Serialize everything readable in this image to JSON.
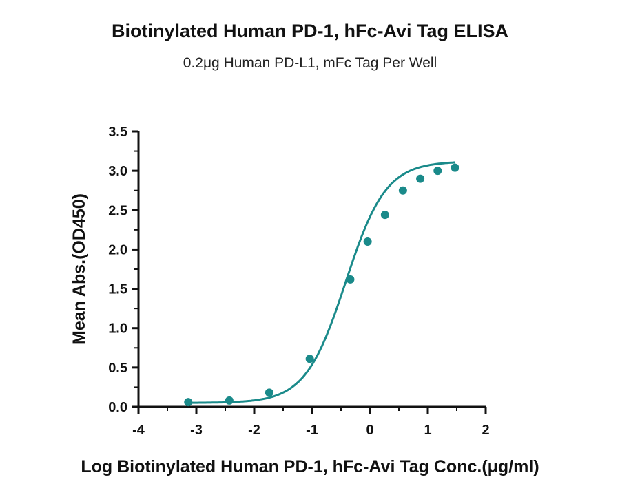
{
  "chart_data": {
    "type": "scatter",
    "title": "Biotinylated Human PD-1, hFc-Avi Tag ELISA",
    "subtitle": "0.2μg Human PD-L1, mFc Tag Per Well",
    "xlabel": "Log Biotinylated Human PD-1, hFc-Avi Tag Conc.(μg/ml)",
    "ylabel": "Mean Abs.(OD450)",
    "xlim": [
      -4,
      2
    ],
    "ylim": [
      0,
      3.5
    ],
    "x_ticks": [
      "-4",
      "-3",
      "-2",
      "-1",
      "0",
      "1",
      "2"
    ],
    "y_ticks": [
      "0.0",
      "0.5",
      "1.0",
      "1.5",
      "2.0",
      "2.5",
      "3.0",
      "3.5"
    ],
    "grid": false,
    "color": "#1a8a8a",
    "series": [
      {
        "x": [
          -3.14,
          -2.43,
          -1.74,
          -1.04,
          -0.34,
          -0.04,
          0.26,
          0.57,
          0.87,
          1.17,
          1.47
        ],
        "y": [
          0.06,
          0.08,
          0.18,
          0.61,
          1.62,
          2.1,
          2.44,
          2.75,
          2.9,
          3.0,
          3.04
        ],
        "fit": "4PL"
      }
    ]
  }
}
